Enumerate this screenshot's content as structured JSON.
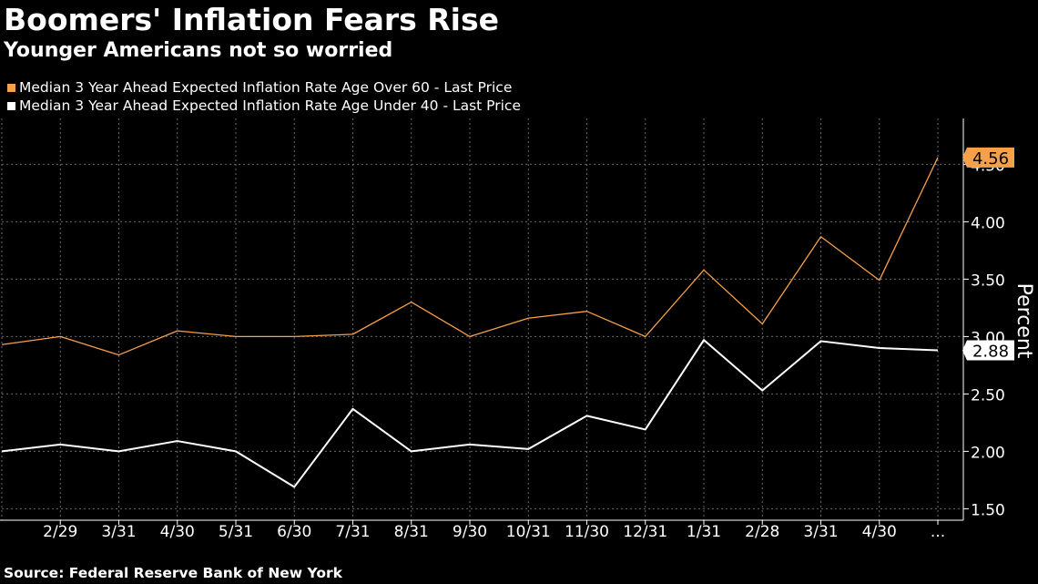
{
  "header": {
    "title": "Boomers' Inflation Fears Rise",
    "subtitle": "Younger Americans not so worried"
  },
  "source": "Source: Federal Reserve Bank of New York",
  "colors": {
    "background": "#000000",
    "series_over_60": "#f5a04a",
    "series_under_40": "#ffffff",
    "grid": "#6a6a6a"
  },
  "chart_data": {
    "type": "line",
    "title": "Boomers' Inflation Fears Rise",
    "subtitle": "Younger Americans not so worried",
    "xlabel": "",
    "ylabel": "Percent",
    "x_tick_labels": [
      "2/29",
      "3/31",
      "4/30",
      "5/31",
      "6/30",
      "7/31",
      "8/31",
      "9/30",
      "10/31",
      "11/30",
      "12/31",
      "1/31",
      "2/28",
      "3/31",
      "4/30",
      "..."
    ],
    "ylim": [
      1.4,
      4.9
    ],
    "y_ticks": [
      1.5,
      2.0,
      2.5,
      3.0,
      3.5,
      4.0,
      4.5
    ],
    "y_tick_labels": [
      "1.50",
      "2.00",
      "2.50",
      "3.00",
      "3.50",
      "4.00",
      "4.50"
    ],
    "grid": true,
    "legend_position": "top-left",
    "series": [
      {
        "name": "Median 3 Year Ahead Expected Inflation Rate Age Over 60 - Last Price",
        "color": "#f5a04a",
        "values": [
          2.93,
          3.0,
          2.84,
          3.05,
          3.0,
          3.0,
          3.02,
          3.3,
          3.0,
          3.16,
          3.22,
          3.0,
          3.58,
          3.11,
          3.87,
          3.49,
          4.56
        ],
        "last_value_label": "4.56"
      },
      {
        "name": "Median 3 Year Ahead Expected Inflation Rate Age Under 40 - Last Price",
        "color": "#ffffff",
        "values": [
          2.0,
          2.06,
          2.0,
          2.09,
          2.0,
          1.69,
          2.37,
          2.0,
          2.06,
          2.02,
          2.31,
          2.19,
          2.97,
          2.53,
          2.96,
          2.9,
          2.88
        ],
        "last_value_label": "2.88"
      }
    ]
  }
}
